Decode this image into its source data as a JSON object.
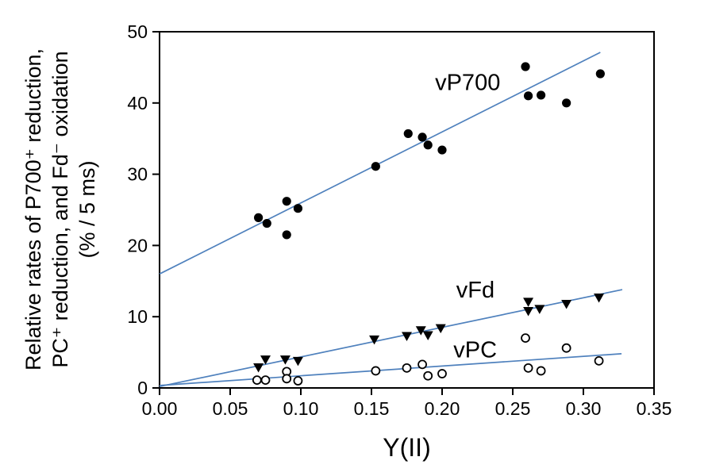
{
  "chart_data": {
    "type": "scatter",
    "title": "",
    "xlabel": "Y(II)",
    "ylabel_lines": [
      "Relative rates of P700⁺ reduction,",
      "PC⁺ reduction, and Fd⁻ oxidation",
      "(% / 5 ms)"
    ],
    "xlim": [
      0,
      0.35
    ],
    "ylim": [
      0,
      50
    ],
    "x_ticks": [
      0.0,
      0.05,
      0.1,
      0.15,
      0.2,
      0.25,
      0.3,
      0.35
    ],
    "x_tick_labels": [
      "0.00",
      "0.05",
      "0.10",
      "0.15",
      "0.20",
      "0.25",
      "0.30",
      "0.35"
    ],
    "y_ticks": [
      0,
      10,
      20,
      30,
      40,
      50
    ],
    "y_tick_labels": [
      "0",
      "10",
      "20",
      "30",
      "40",
      "50"
    ],
    "grid": false,
    "legend_position": "inline-annotations",
    "axis_color": "#000000",
    "trendline_color": "#4f81bd",
    "series": [
      {
        "name": "vP700",
        "marker": "filled-circle",
        "marker_color": "#000000",
        "points": [
          [
            0.07,
            23.9
          ],
          [
            0.076,
            23.1
          ],
          [
            0.09,
            26.2
          ],
          [
            0.09,
            21.5
          ],
          [
            0.098,
            25.2
          ],
          [
            0.153,
            31.1
          ],
          [
            0.176,
            35.7
          ],
          [
            0.186,
            35.2
          ],
          [
            0.19,
            34.1
          ],
          [
            0.2,
            33.4
          ],
          [
            0.259,
            45.1
          ],
          [
            0.261,
            41.0
          ],
          [
            0.27,
            41.1
          ],
          [
            0.288,
            40.0
          ],
          [
            0.312,
            44.1
          ]
        ],
        "trendline": {
          "x1": 0,
          "y1": 16.0,
          "x2": 0.312,
          "y2": 47.1
        },
        "label": {
          "text": "vP700",
          "x": 0.195,
          "y": 41.8
        }
      },
      {
        "name": "vFd",
        "marker": "filled-triangle-down",
        "marker_color": "#000000",
        "points": [
          [
            0.07,
            2.9
          ],
          [
            0.075,
            4.0
          ],
          [
            0.089,
            4.0
          ],
          [
            0.098,
            3.8
          ],
          [
            0.152,
            6.8
          ],
          [
            0.175,
            7.3
          ],
          [
            0.185,
            8.1
          ],
          [
            0.19,
            7.4
          ],
          [
            0.199,
            8.4
          ],
          [
            0.261,
            12.1
          ],
          [
            0.261,
            10.8
          ],
          [
            0.269,
            11.1
          ],
          [
            0.288,
            11.8
          ],
          [
            0.311,
            12.7
          ]
        ],
        "trendline": {
          "x1": 0,
          "y1": 0.2,
          "x2": 0.3275,
          "y2": 13.8
        },
        "label": {
          "text": "vFd",
          "x": 0.21,
          "y": 12.7
        }
      },
      {
        "name": "vPC",
        "marker": "open-circle",
        "marker_color": "#000000",
        "points": [
          [
            0.069,
            1.1
          ],
          [
            0.075,
            1.1
          ],
          [
            0.09,
            2.3
          ],
          [
            0.09,
            1.3
          ],
          [
            0.098,
            1.0
          ],
          [
            0.153,
            2.4
          ],
          [
            0.175,
            2.8
          ],
          [
            0.186,
            3.3
          ],
          [
            0.19,
            1.7
          ],
          [
            0.2,
            2.0
          ],
          [
            0.259,
            7.0
          ],
          [
            0.261,
            2.8
          ],
          [
            0.27,
            2.4
          ],
          [
            0.288,
            5.6
          ],
          [
            0.311,
            3.8
          ]
        ],
        "trendline": {
          "x1": 0,
          "y1": 0.35,
          "x2": 0.327,
          "y2": 4.8
        },
        "label": {
          "text": "vPC",
          "x": 0.208,
          "y": 4.3
        }
      }
    ]
  }
}
